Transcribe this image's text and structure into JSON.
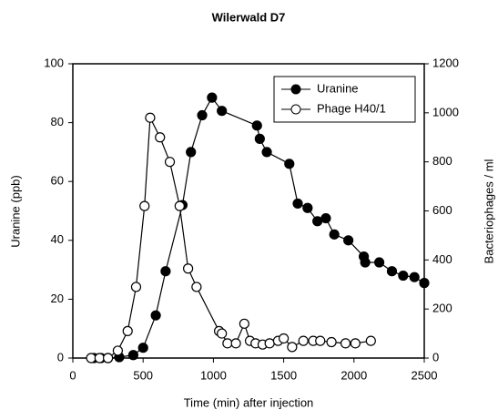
{
  "chart_data": {
    "type": "line",
    "title": "Wilerwald D7",
    "xlabel": "Time (min) after injection",
    "ylabel": "Uranine (ppb)",
    "y2label": "Bacteriophages / ml",
    "xlim": [
      0,
      2500
    ],
    "xticks": [
      0,
      500,
      1000,
      1500,
      2000,
      2500
    ],
    "ylim": [
      0,
      100
    ],
    "yticks": [
      0,
      20,
      40,
      60,
      80,
      100
    ],
    "y2lim": [
      0,
      1200
    ],
    "y2ticks": [
      0,
      200,
      400,
      600,
      800,
      1000,
      1200
    ],
    "legend": "upper right",
    "series": [
      {
        "name": "Uranine",
        "color": "#000000",
        "marker": "filled",
        "x": [
          150,
          200,
          250,
          330,
          430,
          500,
          590,
          660,
          780,
          840,
          920,
          990,
          1060,
          1310,
          1330,
          1380,
          1540,
          1600,
          1670,
          1740,
          1800,
          1860,
          1960,
          2070,
          2080,
          2180,
          2270,
          2350,
          2430,
          2500
        ],
        "values": [
          0,
          0,
          0,
          0.3,
          1,
          3.5,
          14.5,
          29.5,
          52,
          70,
          82.5,
          88.5,
          84,
          79,
          74.5,
          70,
          66,
          52.5,
          51,
          46.5,
          47.5,
          42,
          40,
          34.5,
          32.5,
          32.5,
          29.5,
          28,
          27.5,
          25.5
        ]
      },
      {
        "name": "Phage H40/1",
        "color": "#000000",
        "marker": "open",
        "axis": "y2",
        "x": [
          130,
          190,
          250,
          320,
          390,
          450,
          510,
          550,
          620,
          690,
          760,
          820,
          880,
          1040,
          1060,
          1100,
          1160,
          1220,
          1260,
          1300,
          1350,
          1400,
          1460,
          1500,
          1560,
          1640,
          1710,
          1760,
          1840,
          1940,
          2010,
          2120
        ],
        "values": [
          0,
          0,
          0,
          30,
          110,
          290,
          620,
          980,
          900,
          800,
          620,
          365,
          290,
          110,
          100,
          60,
          60,
          140,
          70,
          60,
          55,
          60,
          70,
          80,
          45,
          70,
          70,
          70,
          65,
          60,
          60,
          70
        ]
      }
    ]
  }
}
